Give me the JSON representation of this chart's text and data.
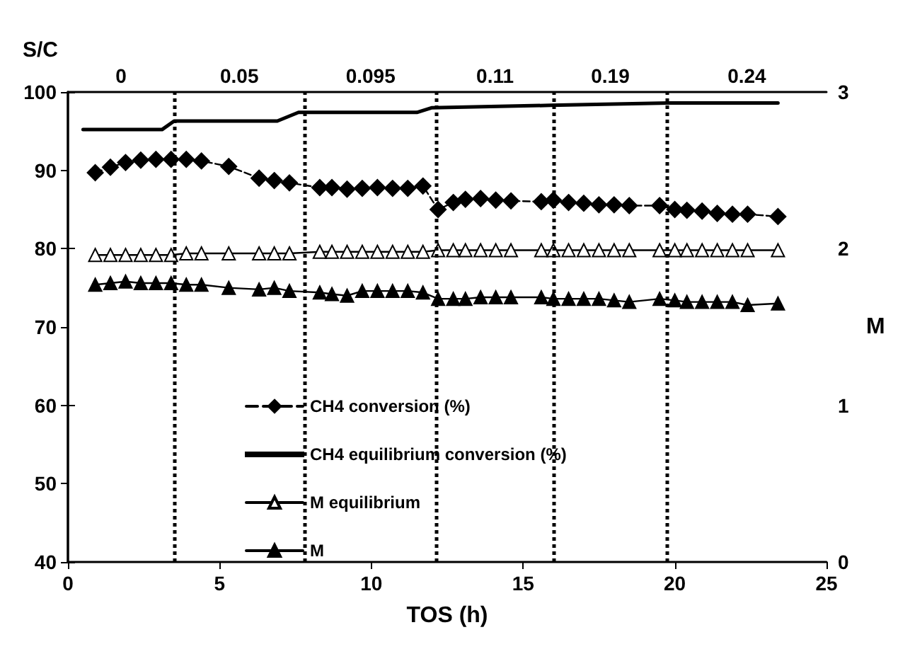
{
  "chart_data": {
    "type": "line",
    "xlabel": "TOS (h)",
    "y2label": "M",
    "x": [
      0.9,
      1.4,
      1.9,
      2.4,
      2.9,
      3.4,
      3.9,
      4.4,
      5.3,
      6.3,
      6.8,
      7.3,
      8.3,
      8.7,
      9.2,
      9.7,
      10.2,
      10.7,
      11.2,
      11.7,
      12.2,
      12.7,
      13.1,
      13.6,
      14.1,
      14.6,
      15.6,
      16.0,
      16.5,
      17.0,
      17.5,
      18.0,
      18.5,
      19.5,
      20.0,
      20.4,
      20.9,
      21.4,
      21.9,
      22.4,
      23.4
    ],
    "series": [
      {
        "name": "CH4 conversion (%)",
        "color": "#000000",
        "marker": "diamond",
        "line_style": "dashed",
        "values": [
          89.7,
          90.4,
          91.0,
          91.3,
          91.4,
          91.4,
          91.4,
          91.2,
          90.5,
          89.0,
          88.7,
          88.4,
          87.8,
          87.8,
          87.6,
          87.7,
          87.8,
          87.7,
          87.7,
          88.0,
          85.0,
          85.9,
          86.3,
          86.4,
          86.2,
          86.1,
          86.0,
          86.2,
          85.9,
          85.8,
          85.6,
          85.6,
          85.5,
          85.5,
          85.0,
          84.9,
          84.8,
          84.5,
          84.4,
          84.4,
          84.1
        ]
      },
      {
        "name": "CH4 equilibrium conversion (%)",
        "color": "#000000",
        "marker": "none",
        "line_style": "solid",
        "x": [
          0.5,
          3.1,
          3.5,
          6.9,
          7.6,
          11.5,
          12.0,
          15.9,
          19.8,
          23.4
        ],
        "values": [
          95.2,
          95.2,
          96.3,
          96.3,
          97.4,
          97.4,
          98.0,
          98.3,
          98.6,
          98.6
        ]
      },
      {
        "name": "M equilibrium",
        "color": "#ffffff",
        "marker": "triangle",
        "line_style": "solid",
        "axis": "y2",
        "values": [
          1.96,
          1.96,
          1.96,
          1.96,
          1.96,
          1.96,
          1.97,
          1.97,
          1.97,
          1.97,
          1.97,
          1.97,
          1.98,
          1.98,
          1.98,
          1.98,
          1.98,
          1.98,
          1.98,
          1.98,
          1.99,
          1.99,
          1.99,
          1.99,
          1.99,
          1.99,
          1.99,
          1.99,
          1.99,
          1.99,
          1.99,
          1.99,
          1.99,
          1.99,
          1.99,
          1.99,
          1.99,
          1.99,
          1.99,
          1.99,
          1.99
        ]
      },
      {
        "name": "M",
        "color": "#000000",
        "marker": "triangle",
        "line_style": "solid",
        "axis": "y2",
        "values": [
          1.77,
          1.78,
          1.79,
          1.78,
          1.78,
          1.78,
          1.77,
          1.77,
          1.75,
          1.74,
          1.75,
          1.73,
          1.72,
          1.71,
          1.7,
          1.73,
          1.73,
          1.73,
          1.73,
          1.72,
          1.68,
          1.68,
          1.68,
          1.69,
          1.69,
          1.69,
          1.69,
          1.68,
          1.68,
          1.68,
          1.68,
          1.67,
          1.66,
          1.68,
          1.67,
          1.66,
          1.66,
          1.66,
          1.66,
          1.64,
          1.65
        ]
      }
    ],
    "xlim": [
      0,
      25
    ],
    "xticks": [
      0,
      5,
      10,
      15,
      20,
      25
    ],
    "ylim": [
      40,
      100
    ],
    "yticks": [
      40,
      50,
      60,
      70,
      80,
      90,
      100
    ],
    "y2lim": [
      0,
      3
    ],
    "y2ticks": [
      0,
      1,
      2,
      3
    ],
    "ref_lines": [
      {
        "axis": "x",
        "value": 3.5,
        "line_style": "dotted"
      },
      {
        "axis": "x",
        "value": 7.8,
        "line_style": "dotted"
      },
      {
        "axis": "x",
        "value": 12.15,
        "line_style": "dotted"
      },
      {
        "axis": "x",
        "value": 16.0,
        "line_style": "dotted"
      },
      {
        "axis": "x",
        "value": 19.75,
        "line_style": "dotted"
      }
    ],
    "annotations": [
      "S/C",
      "0",
      "0.05",
      "0.095",
      "0.11",
      "0.19",
      "0.24"
    ],
    "grid": false,
    "legend": "left"
  }
}
